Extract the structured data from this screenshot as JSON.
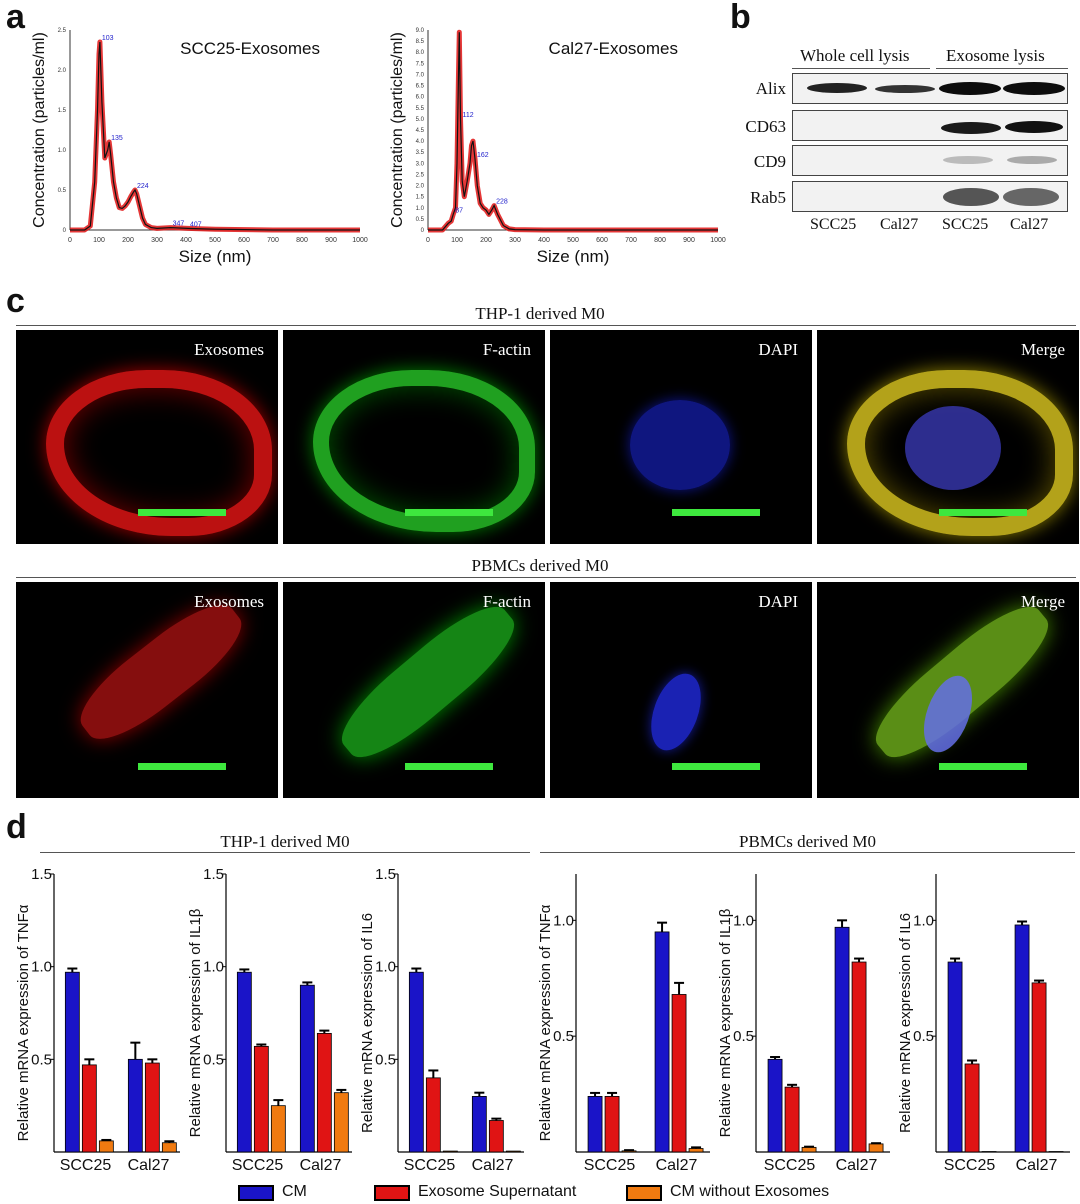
{
  "panel_labels": {
    "a": "a",
    "b": "b",
    "c": "c",
    "d": "d"
  },
  "colors": {
    "cm": "#1a14c8",
    "supernatant": "#e01414",
    "no_exo": "#f07a10",
    "scale_bar": "#3ee83e"
  },
  "chart_data": [
    {
      "type": "line",
      "title": "SCC25-Exosomes",
      "xlabel": "Size (nm)",
      "ylabel": "Concentration (particles/ml)",
      "xlim": [
        0,
        1000
      ],
      "ylim": [
        0,
        2.5
      ],
      "xticks": [
        "0",
        "100",
        "200",
        "300",
        "400",
        "500",
        "600",
        "700",
        "800",
        "900",
        "1000"
      ],
      "yticks": [
        "0",
        "0.5",
        "1.0",
        "1.5",
        "2.0",
        "2.5"
      ],
      "peak_labels": [
        "103",
        "135",
        "224",
        "347",
        "407"
      ],
      "x": [
        0,
        50,
        70,
        85,
        95,
        100,
        103,
        110,
        120,
        130,
        135,
        140,
        150,
        160,
        170,
        180,
        190,
        200,
        210,
        220,
        224,
        230,
        240,
        250,
        260,
        280,
        300,
        347,
        407,
        500,
        700,
        1000
      ],
      "y": [
        0,
        0,
        0.05,
        0.6,
        1.5,
        2.2,
        2.35,
        1.6,
        0.9,
        1.0,
        1.1,
        0.95,
        0.6,
        0.4,
        0.28,
        0.27,
        0.3,
        0.35,
        0.42,
        0.48,
        0.5,
        0.45,
        0.3,
        0.15,
        0.07,
        0.03,
        0.02,
        0.03,
        0.02,
        0.01,
        0,
        0
      ]
    },
    {
      "type": "line",
      "title": "Cal27-Exosomes",
      "xlabel": "Size (nm)",
      "ylabel": "Concentration (particles/ml)",
      "xlim": [
        0,
        1000
      ],
      "ylim": [
        0,
        9.0
      ],
      "xticks": [
        "0",
        "100",
        "200",
        "300",
        "400",
        "500",
        "600",
        "700",
        "800",
        "900",
        "1000"
      ],
      "yticks": [
        "0",
        "0.5",
        "1.0",
        "1.5",
        "2.0",
        "2.5",
        "3.0",
        "3.5",
        "4.0",
        "4.5",
        "5.0",
        "5.5",
        "6.0",
        "6.5",
        "7.0",
        "7.5",
        "8.0",
        "8.5",
        "9.0"
      ],
      "peak_labels": [
        "112",
        "162",
        "228",
        "87"
      ],
      "x": [
        0,
        50,
        70,
        80,
        87,
        95,
        100,
        105,
        108,
        112,
        118,
        125,
        135,
        145,
        150,
        155,
        162,
        170,
        180,
        190,
        200,
        210,
        220,
        228,
        240,
        260,
        280,
        300,
        400,
        1000
      ],
      "y": [
        0,
        0,
        0.3,
        0.4,
        0.7,
        1.0,
        3.0,
        7.0,
        8.9,
        5.0,
        2.2,
        1.5,
        2.2,
        3.0,
        3.8,
        4.0,
        3.2,
        2.0,
        1.2,
        1.0,
        0.9,
        0.7,
        0.9,
        1.1,
        0.7,
        0.2,
        0.05,
        0.02,
        0,
        0
      ]
    },
    {
      "type": "bar",
      "group": "THP-1 derived M0",
      "ylabel": "Relative mRNA expression of TNFα",
      "categories": [
        "SCC25",
        "Cal27"
      ],
      "ylim": [
        0,
        1.5
      ],
      "yticks": [
        "0.5",
        "1.0",
        "1.5"
      ],
      "series": [
        {
          "name": "CM",
          "values": [
            0.97,
            0.5
          ],
          "errors": [
            0.02,
            0.09
          ]
        },
        {
          "name": "Exosome Supernatant",
          "values": [
            0.47,
            0.48
          ],
          "errors": [
            0.03,
            0.02
          ]
        },
        {
          "name": "CM without Exosomes",
          "values": [
            0.06,
            0.05
          ],
          "errors": [
            0.005,
            0.008
          ]
        }
      ]
    },
    {
      "type": "bar",
      "group": "THP-1 derived M0",
      "ylabel": "Relative mRNA expression of IL1β",
      "categories": [
        "SCC25",
        "Cal27"
      ],
      "ylim": [
        0,
        1.5
      ],
      "yticks": [
        "0.5",
        "1.0",
        "1.5"
      ],
      "series": [
        {
          "name": "CM",
          "values": [
            0.97,
            0.9
          ],
          "errors": [
            0.015,
            0.015
          ]
        },
        {
          "name": "Exosome Supernatant",
          "values": [
            0.57,
            0.64
          ],
          "errors": [
            0.01,
            0.015
          ]
        },
        {
          "name": "CM without Exosomes",
          "values": [
            0.25,
            0.32
          ],
          "errors": [
            0.03,
            0.015
          ]
        }
      ]
    },
    {
      "type": "bar",
      "group": "THP-1 derived M0",
      "ylabel": "Relative mRNA expression of IL6",
      "categories": [
        "SCC25",
        "Cal27"
      ],
      "ylim": [
        0,
        1.5
      ],
      "yticks": [
        "0.5",
        "1.0",
        "1.5"
      ],
      "series": [
        {
          "name": "CM",
          "values": [
            0.97,
            0.3
          ],
          "errors": [
            0.02,
            0.02
          ]
        },
        {
          "name": "Exosome Supernatant",
          "values": [
            0.4,
            0.17
          ],
          "errors": [
            0.04,
            0.01
          ]
        },
        {
          "name": "CM without Exosomes",
          "values": [
            0.005,
            0.005
          ],
          "errors": [
            0,
            0
          ]
        }
      ]
    },
    {
      "type": "bar",
      "group": "PBMCs derived M0",
      "ylabel": "Relative mRNA expression of TNFα",
      "categories": [
        "SCC25",
        "Cal27"
      ],
      "ylim": [
        0,
        1.2
      ],
      "yticks": [
        "0.5",
        "1.0"
      ],
      "series": [
        {
          "name": "CM",
          "values": [
            0.24,
            0.95
          ],
          "errors": [
            0.015,
            0.04
          ]
        },
        {
          "name": "Exosome Supernatant",
          "values": [
            0.24,
            0.68
          ],
          "errors": [
            0.015,
            0.05
          ]
        },
        {
          "name": "CM without Exosomes",
          "values": [
            0.005,
            0.015
          ],
          "errors": [
            0.003,
            0.005
          ]
        }
      ]
    },
    {
      "type": "bar",
      "group": "PBMCs derived M0",
      "ylabel": "Relative mRNA expression of IL1β",
      "categories": [
        "SCC25",
        "Cal27"
      ],
      "ylim": [
        0,
        1.2
      ],
      "yticks": [
        "0.5",
        "1.0"
      ],
      "series": [
        {
          "name": "CM",
          "values": [
            0.4,
            0.97
          ],
          "errors": [
            0.01,
            0.03
          ]
        },
        {
          "name": "Exosome Supernatant",
          "values": [
            0.28,
            0.82
          ],
          "errors": [
            0.01,
            0.015
          ]
        },
        {
          "name": "CM without Exosomes",
          "values": [
            0.02,
            0.035
          ],
          "errors": [
            0.003,
            0.003
          ]
        }
      ]
    },
    {
      "type": "bar",
      "group": "PBMCs derived M0",
      "ylabel": "Relative mRNA expression of IL6",
      "categories": [
        "SCC25",
        "Cal27"
      ],
      "ylim": [
        0,
        1.2
      ],
      "yticks": [
        "0.5",
        "1.0"
      ],
      "series": [
        {
          "name": "CM",
          "values": [
            0.82,
            0.98
          ],
          "errors": [
            0.015,
            0.015
          ]
        },
        {
          "name": "Exosome Supernatant",
          "values": [
            0.38,
            0.73
          ],
          "errors": [
            0.015,
            0.01
          ]
        },
        {
          "name": "CM without Exosomes",
          "values": [
            0.002,
            0.002
          ],
          "errors": [
            0,
            0
          ]
        }
      ]
    }
  ],
  "western": {
    "groups": [
      "Whole cell lysis",
      "Exosome lysis"
    ],
    "rows": [
      "Alix",
      "CD63",
      "CD9",
      "Rab5"
    ],
    "lanes": [
      "SCC25",
      "Cal27",
      "SCC25",
      "Cal27"
    ]
  },
  "microscopy": {
    "row1_title": "THP-1 derived M0",
    "row2_title": "PBMCs derived M0",
    "channels": [
      "Exosomes",
      "F-actin",
      "DAPI",
      "Merge"
    ]
  },
  "bar_groups": {
    "left": "THP-1 derived M0",
    "right": "PBMCs derived M0"
  },
  "legend": {
    "cm": "CM",
    "supernatant": "Exosome Supernatant",
    "no_exo": "CM without Exosomes"
  }
}
